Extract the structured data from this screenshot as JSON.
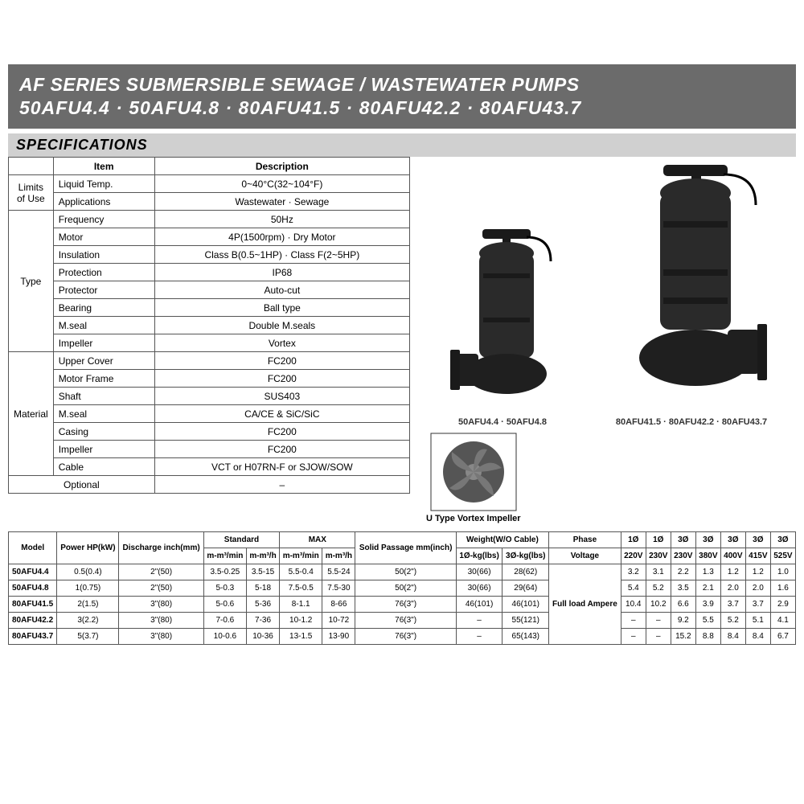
{
  "header": {
    "title": "AF SERIES SUBMERSIBLE SEWAGE / WASTEWATER PUMPS",
    "subtitle": "50AFU4.4 · 50AFU4.8 · 80AFU41.5 · 80AFU42.2 · 80AFU43.7"
  },
  "sections": {
    "specifications_label": "SPECIFICATIONS"
  },
  "spec_table": {
    "col_item": "Item",
    "col_desc": "Description",
    "groups": [
      {
        "label": "Limits of Use",
        "rows": [
          {
            "item": "Liquid Temp.",
            "desc": "0~40°C(32~104°F)"
          },
          {
            "item": "Applications",
            "desc": "Wastewater · Sewage"
          }
        ]
      },
      {
        "label": "Type",
        "rows": [
          {
            "item": "Frequency",
            "desc": "50Hz"
          },
          {
            "item": "Motor",
            "desc": "4P(1500rpm) · Dry Motor"
          },
          {
            "item": "Insulation",
            "desc": "Class B(0.5~1HP) · Class F(2~5HP)"
          },
          {
            "item": "Protection",
            "desc": "IP68"
          },
          {
            "item": "Protector",
            "desc": "Auto-cut"
          },
          {
            "item": "Bearing",
            "desc": "Ball type"
          },
          {
            "item": "M.seal",
            "desc": "Double M.seals"
          },
          {
            "item": "Impeller",
            "desc": "Vortex"
          }
        ]
      },
      {
        "label": "Material",
        "rows": [
          {
            "item": "Upper Cover",
            "desc": "FC200"
          },
          {
            "item": "Motor Frame",
            "desc": "FC200"
          },
          {
            "item": "Shaft",
            "desc": "SUS403"
          },
          {
            "item": "M.seal",
            "desc": "CA/CE & SiC/SiC"
          },
          {
            "item": "Casing",
            "desc": "FC200"
          },
          {
            "item": "Impeller",
            "desc": "FC200"
          },
          {
            "item": "Cable",
            "desc": "VCT or H07RN-F or SJOW/SOW"
          }
        ]
      }
    ],
    "optional_label": "Optional",
    "optional_value": "–"
  },
  "product_captions": {
    "pump1": "50AFU4.4 · 50AFU4.8",
    "pump2": "80AFU41.5 · 80AFU42.2 · 80AFU43.7",
    "impeller": "U Type Vortex Impeller"
  },
  "models_table": {
    "headers": {
      "model": "Model",
      "power": "Power HP(kW)",
      "discharge": "Discharge inch(mm)",
      "standard": "Standard",
      "max": "MAX",
      "m_min": "m-m³/min",
      "m_h": "m-m³/h",
      "solid": "Solid Passage mm(inch)",
      "weight": "Weight(W/O Cable)",
      "w1": "1Ø-kg(lbs)",
      "w3": "3Ø-kg(lbs)",
      "phase": "Phase",
      "voltage": "Voltage",
      "p1_220": "1Ø",
      "p1_230": "1Ø",
      "p3_230": "3Ø",
      "p3_380": "3Ø",
      "p3_400": "3Ø",
      "p3_415": "3Ø",
      "p3_525": "3Ø",
      "v220": "220V",
      "v230": "230V",
      "v230b": "230V",
      "v380": "380V",
      "v400": "400V",
      "v415": "415V",
      "v525": "525V",
      "full_load": "Full load Ampere"
    },
    "rows": [
      {
        "model": "50AFU4.4",
        "power": "0.5(0.4)",
        "discharge": "2\"(50)",
        "std_min": "3.5-0.25",
        "std_h": "3.5-15",
        "max_min": "5.5-0.4",
        "max_h": "5.5-24",
        "solid": "50(2\")",
        "w1": "30(66)",
        "w3": "28(62)",
        "a": [
          "3.2",
          "3.1",
          "2.2",
          "1.3",
          "1.2",
          "1.2",
          "1.0"
        ]
      },
      {
        "model": "50AFU4.8",
        "power": "1(0.75)",
        "discharge": "2\"(50)",
        "std_min": "5-0.3",
        "std_h": "5-18",
        "max_min": "7.5-0.5",
        "max_h": "7.5-30",
        "solid": "50(2\")",
        "w1": "30(66)",
        "w3": "29(64)",
        "a": [
          "5.4",
          "5.2",
          "3.5",
          "2.1",
          "2.0",
          "2.0",
          "1.6"
        ]
      },
      {
        "model": "80AFU41.5",
        "power": "2(1.5)",
        "discharge": "3\"(80)",
        "std_min": "5-0.6",
        "std_h": "5-36",
        "max_min": "8-1.1",
        "max_h": "8-66",
        "solid": "76(3\")",
        "w1": "46(101)",
        "w3": "46(101)",
        "a": [
          "10.4",
          "10.2",
          "6.6",
          "3.9",
          "3.7",
          "3.7",
          "2.9"
        ]
      },
      {
        "model": "80AFU42.2",
        "power": "3(2.2)",
        "discharge": "3\"(80)",
        "std_min": "7-0.6",
        "std_h": "7-36",
        "max_min": "10-1.2",
        "max_h": "10-72",
        "solid": "76(3\")",
        "w1": "–",
        "w3": "55(121)",
        "a": [
          "–",
          "–",
          "9.2",
          "5.5",
          "5.2",
          "5.1",
          "4.1"
        ]
      },
      {
        "model": "80AFU43.7",
        "power": "5(3.7)",
        "discharge": "3\"(80)",
        "std_min": "10-0.6",
        "std_h": "10-36",
        "max_min": "13-1.5",
        "max_h": "13-90",
        "solid": "76(3\")",
        "w1": "–",
        "w3": "65(143)",
        "a": [
          "–",
          "–",
          "15.2",
          "8.8",
          "8.4",
          "8.4",
          "6.7"
        ]
      }
    ]
  },
  "colors": {
    "banner_bg": "#6b6b6b",
    "banner_text": "#ffffff",
    "spec_label_bg": "#d0d0d0",
    "border": "#555555",
    "pump_body": "#2a2a2a"
  }
}
